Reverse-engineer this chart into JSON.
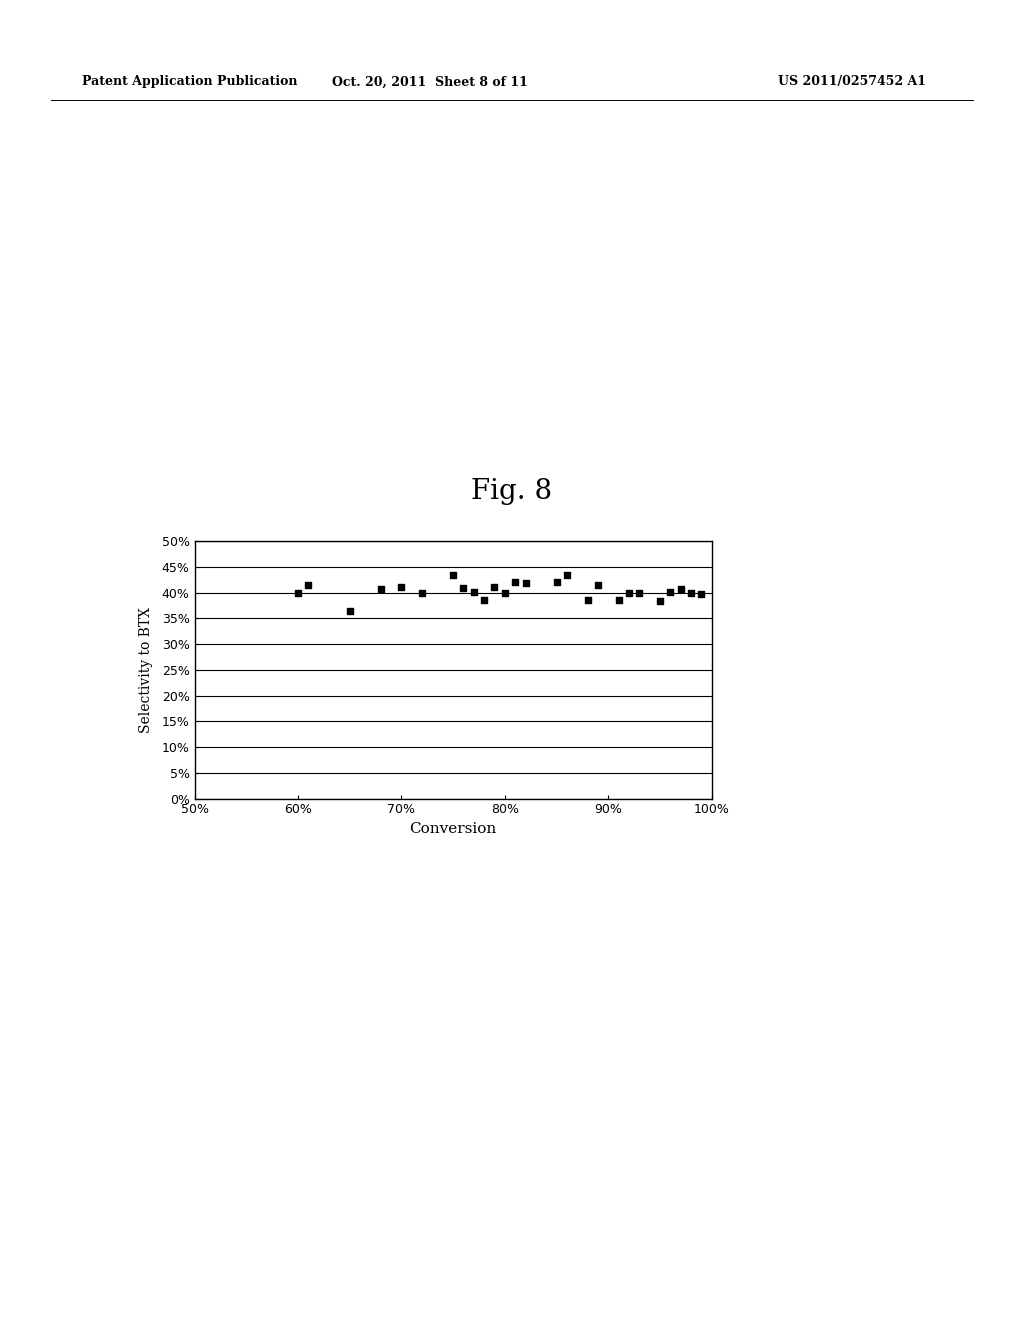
{
  "title": "Fig. 8",
  "xlabel": "Conversion",
  "ylabel": "Selectivity to BTX",
  "xlim": [
    0.5,
    1.0
  ],
  "ylim": [
    0.0,
    0.5
  ],
  "xticks": [
    0.5,
    0.6,
    0.7,
    0.8,
    0.9,
    1.0
  ],
  "yticks": [
    0.0,
    0.05,
    0.1,
    0.15,
    0.2,
    0.25,
    0.3,
    0.35,
    0.4,
    0.45,
    0.5
  ],
  "scatter_x": [
    0.6,
    0.61,
    0.65,
    0.68,
    0.7,
    0.72,
    0.75,
    0.76,
    0.77,
    0.78,
    0.79,
    0.8,
    0.81,
    0.82,
    0.85,
    0.86,
    0.88,
    0.89,
    0.91,
    0.92,
    0.93,
    0.95,
    0.96,
    0.97,
    0.98,
    0.99
  ],
  "scatter_y": [
    0.4,
    0.415,
    0.365,
    0.408,
    0.411,
    0.4,
    0.435,
    0.41,
    0.402,
    0.385,
    0.412,
    0.4,
    0.42,
    0.418,
    0.42,
    0.435,
    0.385,
    0.415,
    0.385,
    0.4,
    0.4,
    0.383,
    0.402,
    0.408,
    0.4,
    0.398
  ],
  "marker_color": "#000000",
  "marker_size": 5,
  "background_color": "#ffffff",
  "header_left": "Patent Application Publication",
  "header_center": "Oct. 20, 2011  Sheet 8 of 11",
  "header_right": "US 2011/0257452 A1"
}
